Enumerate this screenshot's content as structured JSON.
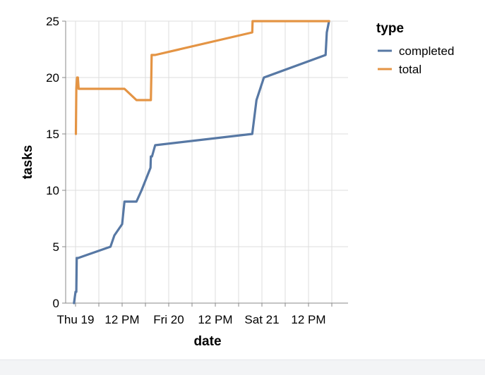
{
  "chart_data": {
    "type": "line",
    "xlabel": "date",
    "ylabel": "tasks",
    "x_unit": "hours since Thu 19 00:00",
    "x_ticks": [
      "Thu 19",
      "12 PM",
      "Fri 20",
      "12 PM",
      "Sat 21",
      "12 PM"
    ],
    "y_ticks": [
      0,
      5,
      10,
      15,
      20,
      25
    ],
    "ylim": [
      0,
      25
    ],
    "grid": true,
    "legend": {
      "title": "type",
      "placement": "top-right"
    },
    "series": [
      {
        "name": "completed",
        "color": "#5778a4",
        "points": [
          [
            -0.4,
            0
          ],
          [
            0.0,
            1
          ],
          [
            0.2,
            1
          ],
          [
            0.3,
            4
          ],
          [
            0.7,
            4
          ],
          [
            9.0,
            5
          ],
          [
            10.0,
            6
          ],
          [
            12.0,
            7
          ],
          [
            12.6,
            9
          ],
          [
            15.7,
            9
          ],
          [
            17.0,
            10
          ],
          [
            19.3,
            12
          ],
          [
            19.4,
            13
          ],
          [
            19.7,
            13
          ],
          [
            20.5,
            14
          ],
          [
            45.5,
            15
          ],
          [
            46.6,
            18
          ],
          [
            48.5,
            20
          ],
          [
            64.4,
            22
          ],
          [
            64.7,
            24
          ],
          [
            65.3,
            25
          ]
        ]
      },
      {
        "name": "total",
        "color": "#e49444",
        "points": [
          [
            0.1,
            15
          ],
          [
            0.2,
            19
          ],
          [
            0.4,
            20
          ],
          [
            0.6,
            20
          ],
          [
            0.8,
            19
          ],
          [
            12.6,
            19
          ],
          [
            15.7,
            18
          ],
          [
            19.4,
            18
          ],
          [
            19.5,
            20
          ],
          [
            19.6,
            22
          ],
          [
            20.5,
            22
          ],
          [
            45.5,
            24
          ],
          [
            45.6,
            25
          ],
          [
            65.3,
            25
          ]
        ]
      }
    ]
  }
}
